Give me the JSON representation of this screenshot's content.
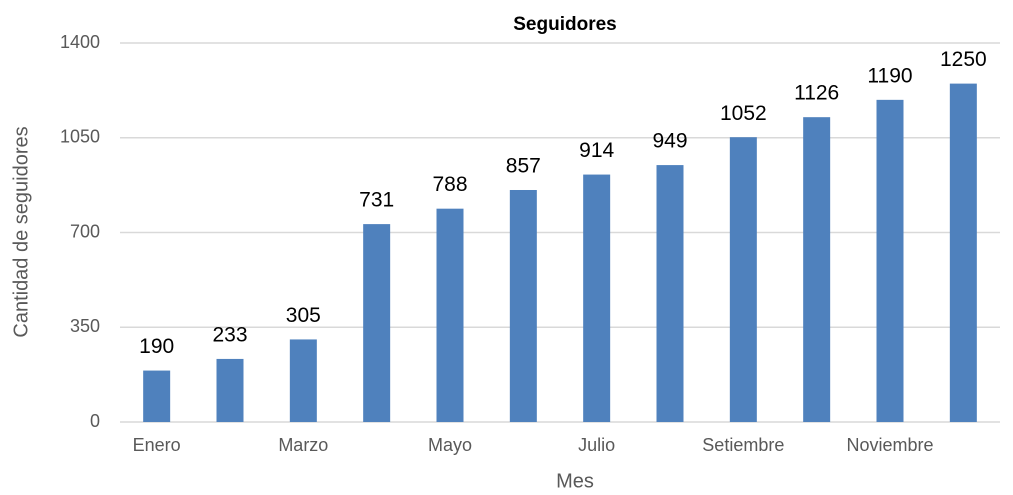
{
  "chart_data": {
    "type": "bar",
    "title": "Seguidores",
    "x_label": "Mes",
    "y_label": "Cantidad de seguidores",
    "categories": [
      "Enero",
      null,
      "Marzo",
      null,
      "Mayo",
      null,
      "Julio",
      null,
      "Setiembre",
      null,
      "Noviembre",
      null
    ],
    "values": [
      190,
      233,
      305,
      731,
      788,
      857,
      914,
      949,
      1052,
      1126,
      1190,
      1250
    ],
    "color": "#4f81bd",
    "ylim": [
      0,
      1400
    ],
    "yticks": [
      0,
      350,
      700,
      1050,
      1400
    ],
    "grid": true
  }
}
